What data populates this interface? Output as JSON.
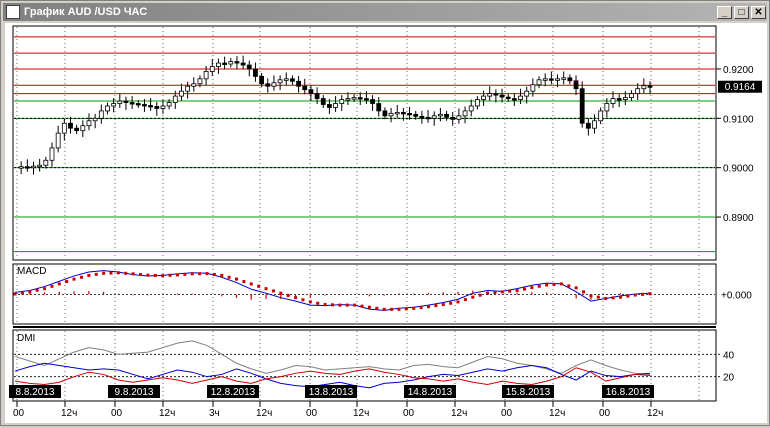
{
  "window": {
    "title": "График AUD /USD ЧАС",
    "buttons": {
      "minimize": "_",
      "maximize": "□",
      "close": "✕"
    }
  },
  "chart_data": [
    {
      "type": "candlestick",
      "symbol": "AUD/USD",
      "timeframe": "H1",
      "price_axis_ticks": [
        0.92,
        0.91,
        0.9,
        0.89
      ],
      "price_axis_labels": [
        "0.9200",
        "0.9100",
        "0.9000",
        "0.8900"
      ],
      "ylim": [
        0.8815,
        0.9285
      ],
      "current_price": 0.9164,
      "current_price_label": "0.9164",
      "horizontal_levels": [
        {
          "price": 0.9265,
          "color": "#cc0000"
        },
        {
          "price": 0.9232,
          "color": "#cc0000"
        },
        {
          "price": 0.92,
          "color": "#cc0000"
        },
        {
          "price": 0.9167,
          "color": "#cc0000"
        },
        {
          "price": 0.915,
          "color": "#cc0000"
        },
        {
          "price": 0.9135,
          "color": "#009900"
        },
        {
          "price": 0.91,
          "color": "#009900"
        },
        {
          "price": 0.9,
          "color": "#009900"
        },
        {
          "price": 0.89,
          "color": "#009900"
        },
        {
          "price": 0.883,
          "color": "#009900"
        }
      ],
      "dotted_levels": [
        0.91,
        0.9
      ],
      "close_path": [
        0.9,
        0.9002,
        0.9001,
        0.9003,
        0.9005,
        0.9015,
        0.904,
        0.907,
        0.909,
        0.908,
        0.9075,
        0.9085,
        0.9095,
        0.91,
        0.9115,
        0.9125,
        0.913,
        0.9135,
        0.9132,
        0.913,
        0.9128,
        0.9126,
        0.9124,
        0.912,
        0.9125,
        0.9132,
        0.9145,
        0.9155,
        0.9165,
        0.917,
        0.918,
        0.9195,
        0.9205,
        0.9212,
        0.921,
        0.9215,
        0.9212,
        0.9208,
        0.92,
        0.9185,
        0.917,
        0.9165,
        0.9172,
        0.9178,
        0.918,
        0.9175,
        0.9165,
        0.9158,
        0.915,
        0.914,
        0.9128,
        0.9122,
        0.913,
        0.9138,
        0.914,
        0.9142,
        0.914,
        0.9138,
        0.913,
        0.9115,
        0.9105,
        0.911,
        0.9112,
        0.911,
        0.9108,
        0.9104,
        0.9102,
        0.91,
        0.9105,
        0.9108,
        0.9102,
        0.9098,
        0.9105,
        0.9115,
        0.9125,
        0.9138,
        0.9145,
        0.915,
        0.9147,
        0.9143,
        0.914,
        0.9138,
        0.9145,
        0.9155,
        0.9168,
        0.9178,
        0.918,
        0.9178,
        0.918,
        0.9182,
        0.9176,
        0.916,
        0.909,
        0.908,
        0.9095,
        0.9115,
        0.913,
        0.914,
        0.9138,
        0.9142,
        0.915,
        0.916,
        0.9166,
        0.9164
      ]
    },
    {
      "type": "line",
      "indicator": "MACD",
      "label": "MACD",
      "zero_label": "+0.000",
      "zero_value": 0,
      "ylim": [
        -1,
        1
      ],
      "series": [
        {
          "values": [
            0.08,
            0.15,
            0.3,
            0.5,
            0.7,
            0.85,
            0.9,
            0.85,
            0.75,
            0.7,
            0.72,
            0.78,
            0.82,
            0.8,
            0.65,
            0.45,
            0.2,
            0.05,
            -0.12,
            -0.25,
            -0.4,
            -0.42,
            -0.38,
            -0.4,
            -0.55,
            -0.6,
            -0.52,
            -0.48,
            -0.4,
            -0.3,
            -0.18,
            0.05,
            0.15,
            0.12,
            0.22,
            0.35,
            0.43,
            0.4,
            0.1,
            -0.25,
            -0.15,
            -0.05,
            0.02,
            0.05
          ],
          "color": "#0000cc"
        },
        {
          "values": [
            0.02,
            0.1,
            0.22,
            0.4,
            0.58,
            0.72,
            0.8,
            0.82,
            0.78,
            0.73,
            0.71,
            0.74,
            0.78,
            0.79,
            0.72,
            0.58,
            0.4,
            0.22,
            0.05,
            -0.12,
            -0.28,
            -0.38,
            -0.4,
            -0.4,
            -0.48,
            -0.56,
            -0.56,
            -0.52,
            -0.46,
            -0.38,
            -0.28,
            -0.1,
            0.05,
            0.1,
            0.15,
            0.26,
            0.36,
            0.4,
            0.25,
            -0.05,
            -0.15,
            -0.1,
            -0.02,
            0.03
          ],
          "color": "#cc0000"
        }
      ],
      "histogram": [
        0.06,
        0.05,
        0.08,
        0.1,
        0.12,
        0.13,
        0.1,
        0.03,
        -0.03,
        -0.03,
        0.01,
        0.04,
        0.04,
        0.01,
        -0.07,
        -0.13,
        -0.2,
        -0.17,
        -0.17,
        -0.13,
        -0.12,
        -0.04,
        0.02,
        0,
        -0.07,
        -0.04,
        0.04,
        0.04,
        0.06,
        0.08,
        0.1,
        0.15,
        0.1,
        0.02,
        0.07,
        0.09,
        0.07,
        0,
        -0.15,
        -0.2,
        0,
        0.05,
        0.04,
        0.02
      ]
    },
    {
      "type": "line",
      "indicator": "DMI",
      "label": "DMI",
      "ylim": [
        0,
        60
      ],
      "level_ticks": [
        40,
        20
      ],
      "level_labels": [
        "40",
        "20"
      ],
      "series": [
        {
          "values": [
            38,
            34,
            30,
            36,
            42,
            46,
            44,
            40,
            41,
            42,
            46,
            50,
            52,
            48,
            40,
            32,
            27,
            23,
            26,
            30,
            29,
            26,
            27,
            28,
            29,
            27,
            26,
            30,
            31,
            29,
            28,
            33,
            38,
            36,
            32,
            30,
            27,
            23,
            30,
            35,
            30,
            26,
            23,
            22
          ],
          "color": "#808080"
        },
        {
          "values": [
            25,
            29,
            32,
            30,
            28,
            26,
            27,
            26,
            22,
            18,
            22,
            26,
            24,
            20,
            22,
            27,
            23,
            18,
            14,
            12,
            11,
            13,
            15,
            12,
            10,
            14,
            15,
            17,
            20,
            22,
            21,
            24,
            27,
            25,
            28,
            30,
            28,
            22,
            17,
            25,
            21,
            20,
            22,
            23
          ],
          "color": "#0000cc"
        },
        {
          "values": [
            16,
            14,
            13,
            15,
            20,
            24,
            22,
            17,
            15,
            17,
            19,
            17,
            14,
            17,
            20,
            16,
            14,
            18,
            20,
            23,
            25,
            23,
            22,
            25,
            27,
            24,
            22,
            19,
            18,
            16,
            18,
            15,
            13,
            16,
            14,
            13,
            16,
            20,
            28,
            24,
            16,
            19,
            22,
            21
          ],
          "color": "#cc0000"
        }
      ]
    }
  ],
  "time_axis": {
    "date_labels": [
      "8.8.2013",
      "9.8.2013",
      "12.8.2013",
      "13.8.2013",
      "14.8.2013",
      "15.8.2013",
      "16.8.2013"
    ],
    "hour_labels": [
      "00",
      "12ч",
      "00",
      "12ч",
      "3ч",
      "12ч",
      "00",
      "12ч",
      "00",
      "12ч",
      "00",
      "12ч",
      "00",
      "12ч"
    ]
  }
}
